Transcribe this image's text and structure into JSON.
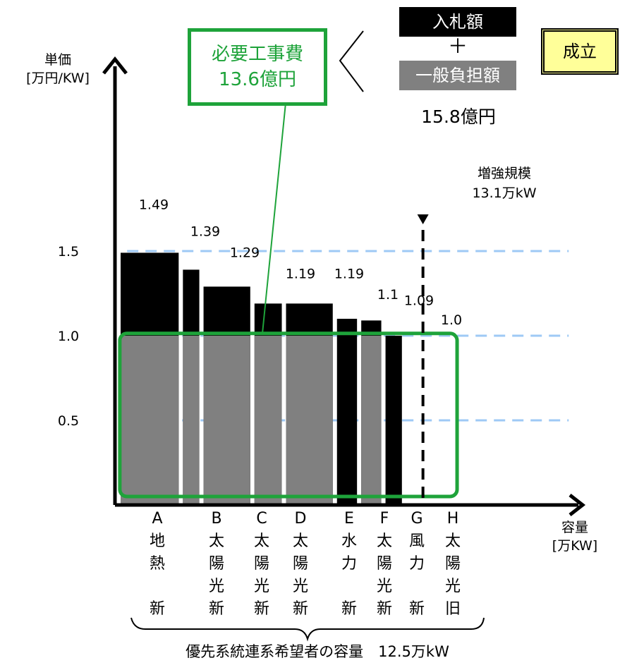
{
  "chart_data": {
    "type": "bar",
    "y_axis_label": [
      "単価",
      "[万円/KW]"
    ],
    "x_axis_label": [
      "容量",
      "[万KW]"
    ],
    "y_ticks": [
      "1.5",
      "1.0",
      "0.5"
    ],
    "y_tick_values": [
      1.5,
      1.0,
      0.5
    ],
    "ylim": [
      0,
      2.0
    ],
    "xlim": [
      0,
      15.5
    ],
    "categories": [
      {
        "letter": "A",
        "chars": [
          "地",
          "熱",
          "",
          "新"
        ]
      },
      {
        "letter": "B",
        "chars": [
          "太",
          "陽",
          "光",
          "新"
        ]
      },
      {
        "letter": "C",
        "chars": [
          "太",
          "陽",
          "光",
          "新"
        ]
      },
      {
        "letter": "D",
        "chars": [
          "太",
          "陽",
          "光",
          "新"
        ]
      },
      {
        "letter": "E",
        "chars": [
          "水",
          "力",
          "",
          "新"
        ]
      },
      {
        "letter": "F",
        "chars": [
          "太",
          "陽",
          "光",
          "新"
        ]
      },
      {
        "letter": "G",
        "chars": [
          "風",
          "力",
          "",
          "新"
        ]
      },
      {
        "letter": "H",
        "chars": [
          "太",
          "陽",
          "光",
          "旧"
        ]
      }
    ],
    "value_labels": [
      "1.49",
      "1.39",
      "1.29",
      "1.19",
      "1.19",
      "1.1",
      "1.09",
      "1.0"
    ],
    "unit_price": [
      1.49,
      1.39,
      1.29,
      1.19,
      1.19,
      1.1,
      1.09,
      1.0
    ],
    "capacity": [
      2.8,
      0.85,
      2.1,
      1.3,
      2.1,
      1.0,
      1.0,
      0.85
    ],
    "general_burden_share": [
      true,
      true,
      true,
      true,
      true,
      false,
      true,
      false
    ],
    "reinforcement_scale": 13.1,
    "reinforcement_label": [
      "増強規模",
      "13.1万kW"
    ],
    "grid": "dashed horizontal at 0.5, 1.0, 1.5",
    "colors": {
      "bar": "#000000",
      "burden": "#808080",
      "highlight": "#1ea33a",
      "grid": "#9ec9f5"
    }
  },
  "required_cost": {
    "line1": "必要工事費",
    "line2": "13.6億円"
  },
  "formula": {
    "bid": "入札額",
    "plus": "＋",
    "general": "一般負担額",
    "total": "15.8億円"
  },
  "status": "成立",
  "priority_capacity": "優先系統連系希望者の容量　12.5万kW"
}
